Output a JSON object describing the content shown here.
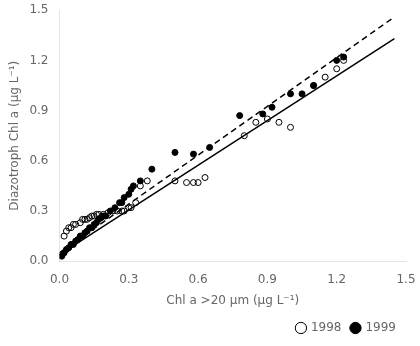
{
  "chart_data": {
    "type": "scatter",
    "xlabel": "Chl a >20 µm (µg L⁻¹)",
    "ylabel": "Diazotroph Chl a (µg L⁻¹)",
    "xlim": [
      0.0,
      1.5
    ],
    "ylim": [
      0.0,
      1.5
    ],
    "xticks": [
      {
        "value": 0.0,
        "label": "0.0"
      },
      0.3,
      0.6,
      0.9,
      1.2,
      1.5
    ],
    "yticks": [
      {
        "value": 0.0,
        "label": "0.0"
      },
      0.3,
      0.6,
      0.9,
      1.2,
      1.5
    ],
    "grid": false,
    "legend": "lower right",
    "series": [
      {
        "name": "1998",
        "type": "scatter",
        "marker": "open_circle",
        "color": "#000000",
        "x": [
          0.02,
          0.03,
          0.04,
          0.05,
          0.06,
          0.07,
          0.09,
          0.1,
          0.11,
          0.12,
          0.13,
          0.14,
          0.15,
          0.16,
          0.17,
          0.19,
          0.21,
          0.23,
          0.25,
          0.27,
          0.28,
          0.3,
          0.31,
          0.33,
          0.35,
          0.38,
          0.5,
          0.55,
          0.58,
          0.6,
          0.63,
          0.8,
          0.85,
          0.9,
          0.95,
          1.0,
          1.1,
          1.15,
          1.2,
          1.23
        ],
        "values": [
          0.15,
          0.18,
          0.2,
          0.2,
          0.22,
          0.22,
          0.23,
          0.25,
          0.25,
          0.25,
          0.26,
          0.27,
          0.27,
          0.28,
          0.28,
          0.28,
          0.29,
          0.3,
          0.3,
          0.3,
          0.3,
          0.32,
          0.32,
          0.35,
          0.45,
          0.48,
          0.48,
          0.47,
          0.47,
          0.47,
          0.5,
          0.75,
          0.83,
          0.85,
          0.83,
          0.8,
          1.05,
          1.1,
          1.15,
          1.2
        ]
      },
      {
        "name": "1999",
        "type": "scatter",
        "marker": "filled_circle",
        "color": "#000000",
        "x": [
          0.01,
          0.02,
          0.03,
          0.04,
          0.05,
          0.06,
          0.07,
          0.08,
          0.09,
          0.1,
          0.11,
          0.12,
          0.13,
          0.14,
          0.15,
          0.16,
          0.17,
          0.18,
          0.19,
          0.2,
          0.22,
          0.24,
          0.26,
          0.27,
          0.28,
          0.3,
          0.31,
          0.32,
          0.35,
          0.4,
          0.5,
          0.58,
          0.65,
          0.78,
          0.88,
          0.92,
          1.0,
          1.05,
          1.1,
          1.2,
          1.23
        ],
        "values": [
          0.03,
          0.05,
          0.07,
          0.08,
          0.1,
          0.1,
          0.12,
          0.13,
          0.15,
          0.15,
          0.17,
          0.18,
          0.2,
          0.2,
          0.22,
          0.23,
          0.25,
          0.26,
          0.27,
          0.27,
          0.3,
          0.32,
          0.35,
          0.35,
          0.38,
          0.4,
          0.43,
          0.45,
          0.48,
          0.55,
          0.65,
          0.64,
          0.68,
          0.87,
          0.88,
          0.92,
          1.0,
          1.0,
          1.05,
          1.2,
          1.22
        ]
      },
      {
        "type": "line",
        "line_style": "solid",
        "color": "#000000",
        "x": [
          0.0,
          1.45
        ],
        "values": [
          0.04,
          1.33
        ]
      },
      {
        "type": "line",
        "line_style": "dashed",
        "color": "#000000",
        "x": [
          0.0,
          1.45
        ],
        "values": [
          0.05,
          1.46
        ]
      }
    ]
  }
}
